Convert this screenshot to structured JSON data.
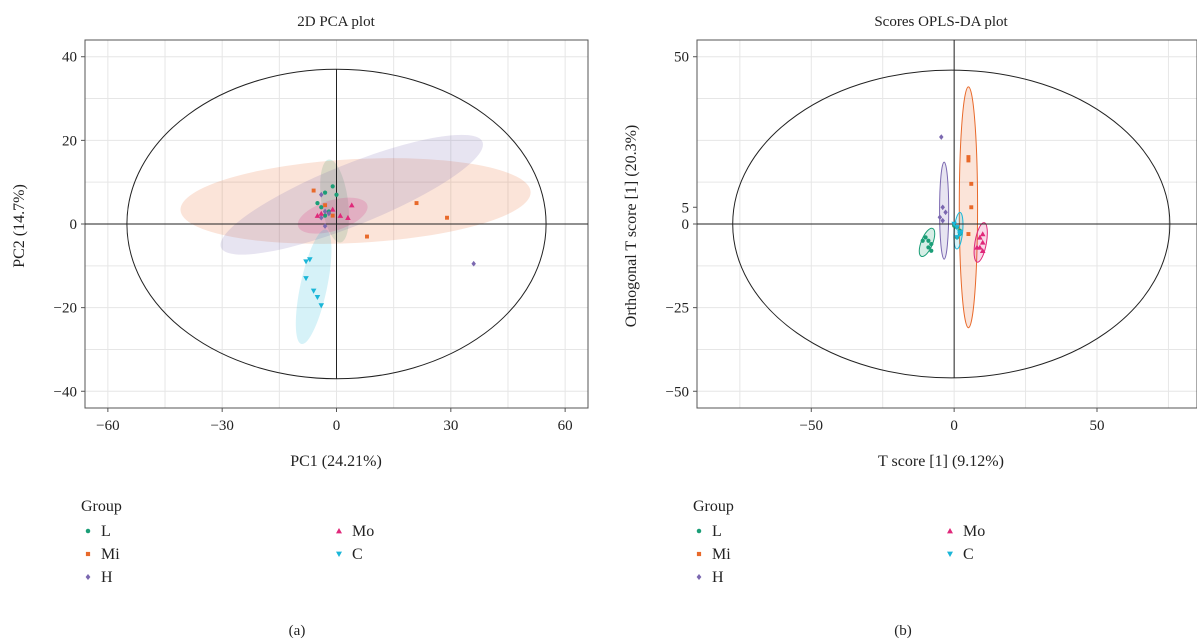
{
  "colors": {
    "L": "#1b9e77",
    "Mi": "#e8692a",
    "H": "#7b68b0",
    "Mo": "#e0287a",
    "C": "#1ab6d8"
  },
  "legend": {
    "title": "Group",
    "items": [
      {
        "key": "L",
        "label": "L",
        "marker": "circle"
      },
      {
        "key": "Mi",
        "label": "Mi",
        "marker": "square"
      },
      {
        "key": "H",
        "label": "H",
        "marker": "diamond"
      },
      {
        "key": "Mo",
        "label": "Mo",
        "marker": "triangle-up"
      },
      {
        "key": "C",
        "label": "C",
        "marker": "triangle-down"
      }
    ]
  },
  "chart_data": [
    {
      "type": "scatter",
      "title": "2D PCA plot",
      "xlabel": "PC1 (24.21%)",
      "ylabel": "PC2 (14.7%)",
      "caption": "(a)",
      "xlim": [
        -66,
        66
      ],
      "ylim": [
        -44,
        44
      ],
      "xticks": [
        -60,
        -30,
        0,
        30,
        60
      ],
      "xtick_labels": [
        "−60",
        "−30",
        "0",
        "30",
        "60"
      ],
      "yticks": [
        -40,
        -20,
        0,
        20,
        40
      ],
      "ytick_labels": [
        "−40",
        "−20",
        "0",
        "20",
        "40"
      ],
      "grid": true,
      "hotelling_ellipse": {
        "cx": 0,
        "cy": 0,
        "rx": 55,
        "ry": 37
      },
      "series": [
        {
          "name": "L",
          "points": [
            [
              -5,
              5
            ],
            [
              -3,
              7.5
            ],
            [
              -1,
              9
            ],
            [
              0,
              7
            ],
            [
              -3,
              2
            ],
            [
              -4,
              4
            ],
            [
              -2,
              3
            ]
          ],
          "ellipse": {
            "cx": -0.5,
            "cy": 5.5,
            "rx": 11,
            "ry": 3.5,
            "angle": -82
          }
        },
        {
          "name": "Mi",
          "points": [
            [
              -6,
              8
            ],
            [
              21,
              5
            ],
            [
              29,
              1.5
            ],
            [
              8,
              -3
            ],
            [
              -3,
              4.5
            ],
            [
              -1,
              2
            ]
          ],
          "ellipse": {
            "cx": 5,
            "cy": 5.5,
            "rx": 46,
            "ry": 11,
            "angle": 3
          }
        },
        {
          "name": "H",
          "points": [
            [
              36,
              -9.5
            ],
            [
              -4,
              7
            ],
            [
              -3,
              -0.5
            ],
            [
              -2,
              2.5
            ],
            [
              -4,
              1.5
            ],
            [
              -3,
              3
            ]
          ],
          "ellipse": {
            "cx": 4,
            "cy": 7,
            "rx": 37,
            "ry": 8,
            "angle": 22
          }
        },
        {
          "name": "Mo",
          "points": [
            [
              -4,
              2.5
            ],
            [
              3,
              1.5
            ],
            [
              4,
              4.5
            ],
            [
              -1,
              3.5
            ],
            [
              1,
              2
            ],
            [
              -5,
              2
            ]
          ],
          "ellipse": {
            "cx": -1,
            "cy": 2,
            "rx": 9.5,
            "ry": 4,
            "angle": 17
          }
        },
        {
          "name": "C",
          "points": [
            [
              -7,
              -8.5
            ],
            [
              -8,
              -9
            ],
            [
              -6,
              -16
            ],
            [
              -5,
              -17.5
            ],
            [
              -4,
              -19.5
            ],
            [
              -8,
              -13
            ]
          ],
          "ellipse": {
            "cx": -6,
            "cy": -15,
            "rx": 14,
            "ry": 3.5,
            "angle": 78
          }
        }
      ]
    },
    {
      "type": "scatter",
      "title": "Scores OPLS-DA plot",
      "xlabel": "T score [1] (9.12%)",
      "ylabel": "Orthogonal T score [1] (20.3%)",
      "caption": "(b)",
      "xlim": [
        -90,
        85
      ],
      "ylim": [
        -55,
        55
      ],
      "xticks": [
        -50,
        0,
        50
      ],
      "xtick_labels": [
        "−50",
        "0",
        "50"
      ],
      "yticks": [
        -50,
        -25,
        0,
        5,
        50
      ],
      "ytick_labels": [
        "−50",
        "−25",
        "0",
        "5",
        "50"
      ],
      "grid": true,
      "hotelling_ellipse": {
        "cx": -1,
        "cy": 0,
        "rx": 76.5,
        "ry": 46
      },
      "series": [
        {
          "name": "L",
          "points": [
            [
              -9,
              -5
            ],
            [
              -8,
              -6
            ],
            [
              -10,
              -4
            ],
            [
              -9,
              -7
            ],
            [
              -11,
              -5
            ],
            [
              -8,
              -8
            ],
            [
              1,
              -1
            ],
            [
              2,
              -3
            ],
            [
              0,
              -0.5
            ],
            [
              1,
              -4
            ],
            [
              2,
              -2
            ]
          ],
          "ellipse": {
            "cx": -9.5,
            "cy": -5.5,
            "rx": 4.5,
            "ry": 2,
            "angle": 68
          }
        },
        {
          "name": "Mi",
          "points": [
            [
              5,
              19
            ],
            [
              6,
              12
            ],
            [
              6,
              5
            ],
            [
              5,
              -3
            ],
            [
              5,
              20
            ]
          ],
          "ellipse": {
            "cx": 5,
            "cy": 5,
            "rx": 36,
            "ry": 3.2,
            "angle": 90
          }
        },
        {
          "name": "H",
          "points": [
            [
              -4.5,
              26
            ],
            [
              -4,
              5
            ],
            [
              -3,
              3.5
            ],
            [
              -5,
              2
            ],
            [
              -4,
              1
            ]
          ],
          "ellipse": {
            "cx": -3.5,
            "cy": 4,
            "rx": 14.5,
            "ry": 1.6,
            "angle": 90
          }
        },
        {
          "name": "Mo",
          "points": [
            [
              9,
              -4
            ],
            [
              10,
              -5.5
            ],
            [
              9,
              -7
            ],
            [
              10,
              -8
            ],
            [
              8,
              -7
            ],
            [
              10,
              -3
            ]
          ],
          "ellipse": {
            "cx": 9.3,
            "cy": -5.5,
            "rx": 6,
            "ry": 2,
            "angle": 80
          }
        },
        {
          "name": "C",
          "points": [
            [
              0,
              0
            ],
            [
              1,
              -1
            ],
            [
              2,
              -2.5
            ],
            [
              1,
              -4
            ],
            [
              2,
              -3
            ]
          ],
          "ellipse": {
            "cx": 1.5,
            "cy": -2,
            "rx": 5.5,
            "ry": 1.5,
            "angle": 85
          }
        }
      ]
    }
  ]
}
